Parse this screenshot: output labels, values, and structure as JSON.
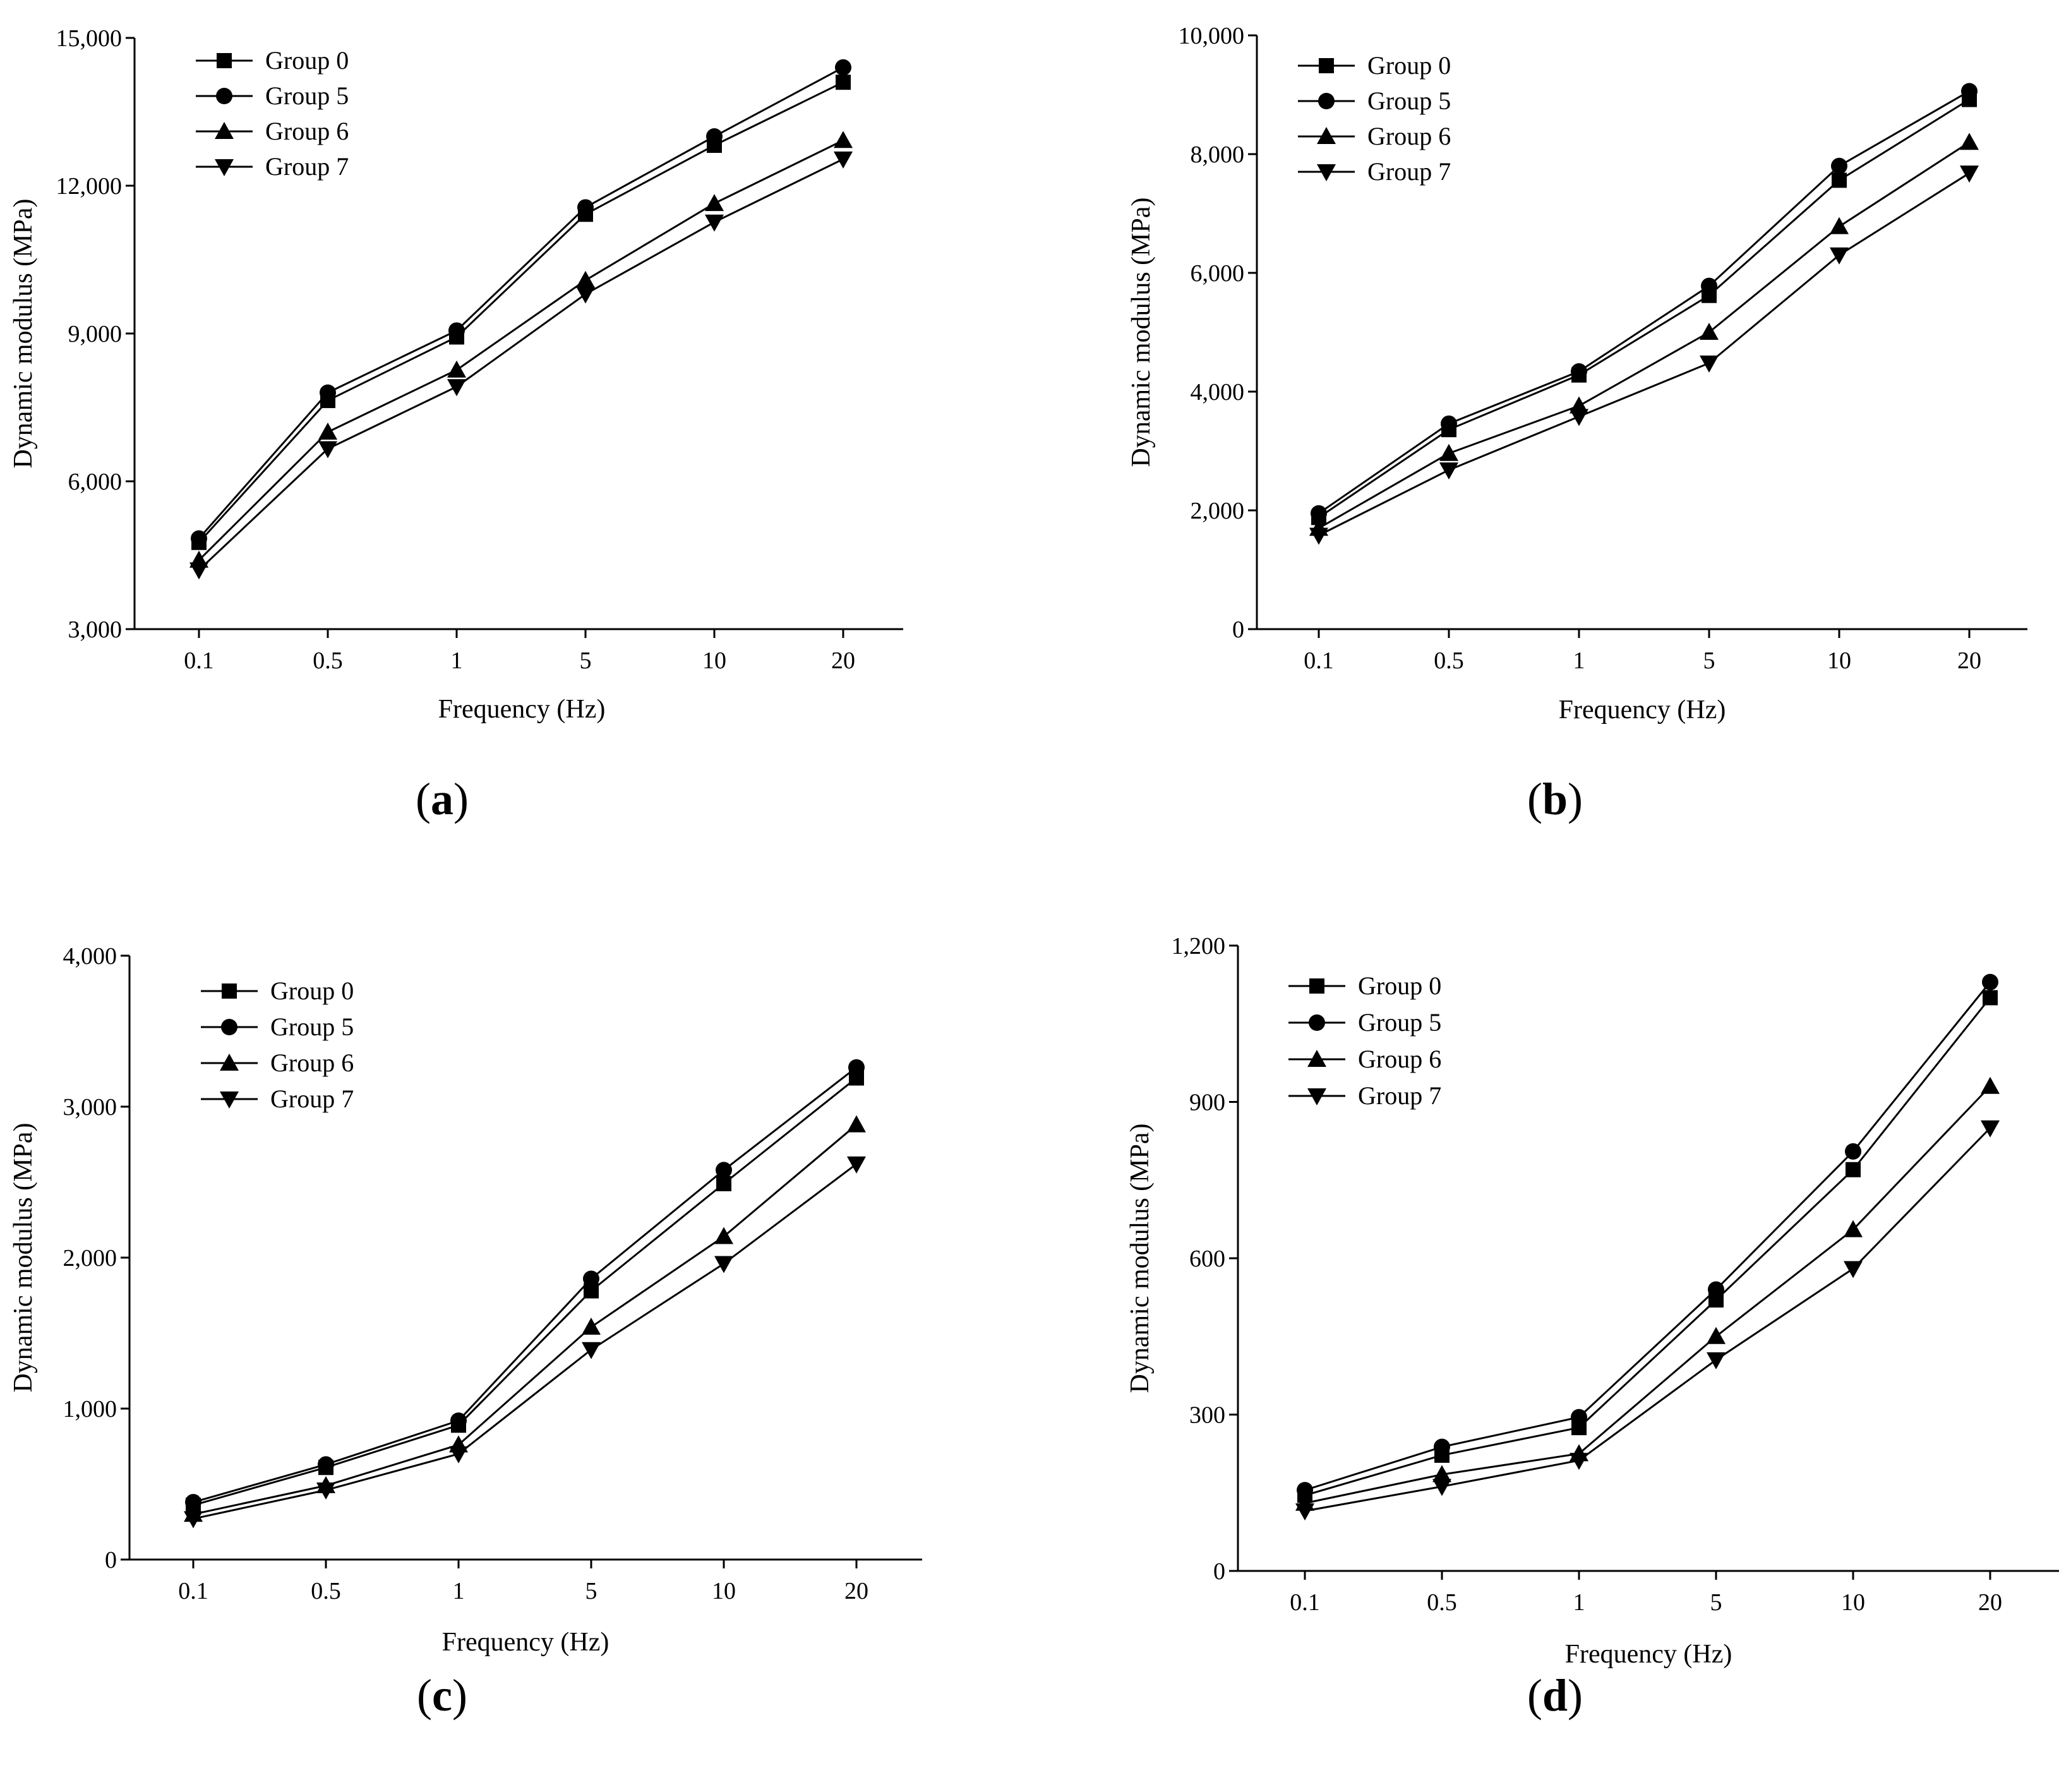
{
  "chart_data": [
    {
      "id": "a",
      "panel_label": "a",
      "type": "line",
      "categories": [
        "0.1",
        "0.5",
        "1",
        "5",
        "10",
        "20"
      ],
      "xlabel": "Frequency (Hz)",
      "ylabel": "Dynamic modulus (MPa)",
      "ylim": [
        3000,
        15000
      ],
      "yticks": [
        3000,
        6000,
        9000,
        12000,
        15000
      ],
      "ytick_labels": [
        "3,000",
        "6,000",
        "9,000",
        "12,000",
        "15,000"
      ],
      "legend_position": "top-left",
      "series": [
        {
          "name": "Group 0",
          "marker": "square",
          "values": [
            4760,
            7640,
            8930,
            11420,
            12820,
            14100
          ]
        },
        {
          "name": "Group 5",
          "marker": "circle",
          "values": [
            4840,
            7800,
            9060,
            11560,
            13000,
            14400
          ]
        },
        {
          "name": "Group 6",
          "marker": "triangle-up",
          "values": [
            4400,
            7000,
            8260,
            10080,
            11640,
            12920
          ]
        },
        {
          "name": "Group 7",
          "marker": "triangle-down",
          "values": [
            4200,
            6660,
            7920,
            9800,
            11260,
            12540
          ]
        }
      ]
    },
    {
      "id": "b",
      "panel_label": "b",
      "type": "line",
      "categories": [
        "0.1",
        "0.5",
        "1",
        "5",
        "10",
        "20"
      ],
      "xlabel": "Frequency (Hz)",
      "ylabel": "Dynamic modulus (MPa)",
      "ylim": [
        0,
        10000
      ],
      "yticks": [
        0,
        2000,
        4000,
        6000,
        8000,
        10000
      ],
      "ytick_labels": [
        "0",
        "2,000",
        "4,000",
        "6,000",
        "8,000",
        "10,000"
      ],
      "legend_position": "top-left",
      "series": [
        {
          "name": "Group 0",
          "marker": "square",
          "values": [
            1880,
            3360,
            4280,
            5620,
            7560,
            8920
          ]
        },
        {
          "name": "Group 5",
          "marker": "circle",
          "values": [
            1950,
            3460,
            4340,
            5780,
            7800,
            9060
          ]
        },
        {
          "name": "Group 6",
          "marker": "triangle-up",
          "values": [
            1700,
            2960,
            3760,
            5000,
            6780,
            8200
          ]
        },
        {
          "name": "Group 7",
          "marker": "triangle-down",
          "values": [
            1580,
            2680,
            3580,
            4480,
            6300,
            7680
          ]
        }
      ]
    },
    {
      "id": "c",
      "panel_label": "c",
      "type": "line",
      "categories": [
        "0.1",
        "0.5",
        "1",
        "5",
        "10",
        "20"
      ],
      "xlabel": "Frequency (Hz)",
      "ylabel": "Dynamic modulus (MPa)",
      "ylim": [
        0,
        4000
      ],
      "yticks": [
        0,
        1000,
        2000,
        3000,
        4000
      ],
      "ytick_labels": [
        "0",
        "1,000",
        "2,000",
        "3,000",
        "4,000"
      ],
      "legend_position": "top-left",
      "series": [
        {
          "name": "Group 0",
          "marker": "square",
          "values": [
            360,
            610,
            890,
            1780,
            2490,
            3190
          ]
        },
        {
          "name": "Group 5",
          "marker": "circle",
          "values": [
            380,
            630,
            920,
            1860,
            2580,
            3260
          ]
        },
        {
          "name": "Group 6",
          "marker": "triangle-up",
          "values": [
            300,
            490,
            760,
            1540,
            2140,
            2880
          ]
        },
        {
          "name": "Group 7",
          "marker": "triangle-down",
          "values": [
            270,
            460,
            700,
            1390,
            1960,
            2620
          ]
        }
      ]
    },
    {
      "id": "d",
      "panel_label": "d",
      "type": "line",
      "categories": [
        "0.1",
        "0.5",
        "1",
        "5",
        "10",
        "20"
      ],
      "xlabel": "Frequency (Hz)",
      "ylabel": "Dynamic modulus (MPa)",
      "ylim": [
        0,
        1200
      ],
      "yticks": [
        0,
        300,
        600,
        900,
        1200
      ],
      "ytick_labels": [
        "0",
        "300",
        "600",
        "900",
        "1,200"
      ],
      "legend_position": "top-left",
      "series": [
        {
          "name": "Group 0",
          "marker": "square",
          "values": [
            145,
            222,
            275,
            520,
            770,
            1100
          ]
        },
        {
          "name": "Group 5",
          "marker": "circle",
          "values": [
            155,
            238,
            295,
            540,
            805,
            1130
          ]
        },
        {
          "name": "Group 6",
          "marker": "triangle-up",
          "values": [
            130,
            185,
            225,
            450,
            655,
            930
          ]
        },
        {
          "name": "Group 7",
          "marker": "triangle-down",
          "values": [
            115,
            162,
            212,
            405,
            580,
            850
          ]
        }
      ]
    }
  ]
}
